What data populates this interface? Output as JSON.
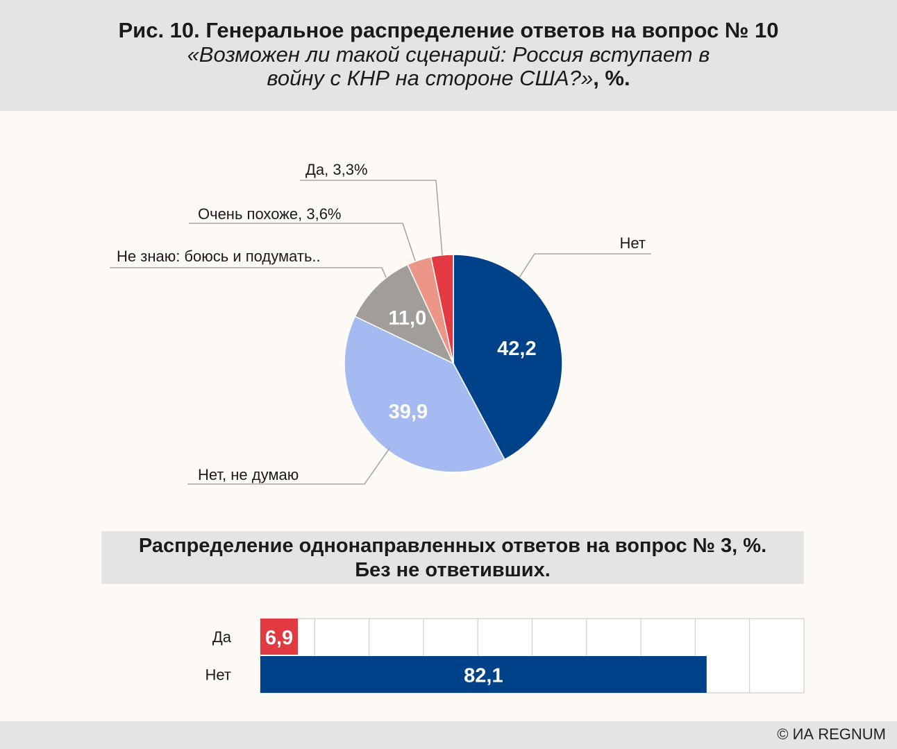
{
  "header": {
    "title": "Рис. 10. Генеральное распределение ответов на вопрос № 10",
    "subtitle_question": "«Возможен ли такой сценарий: Россия вступает в войну с КНР на стороне США?»",
    "subtitle_unit": ", %."
  },
  "chart_data": [
    {
      "type": "pie",
      "start": "12 o'clock, clockwise",
      "slices": [
        {
          "label": "Нет",
          "value": 42.2,
          "value_label": "42,2",
          "color": "#00428a",
          "value_color": "#ffffff"
        },
        {
          "label": "Нет, не думаю",
          "value": 39.9,
          "value_label": "39,9",
          "color": "#a4baf0",
          "value_color": "#ffffff"
        },
        {
          "label": "Не знаю: боюсь и подумать..",
          "value": 11.0,
          "value_label": "11,0",
          "color": "#a19e99",
          "value_color": "#ffffff"
        },
        {
          "label": "Очень похоже, 3,6%",
          "value": 3.6,
          "color": "#eb9687"
        },
        {
          "label": "Да, 3,3%",
          "value": 3.3,
          "color": "#e13b41"
        }
      ]
    },
    {
      "type": "bar",
      "orientation": "horizontal",
      "title": "Распределение однонаправленных ответов на вопрос № 3, %.",
      "subtitle": "Без не ответивших.",
      "categories": [
        "Да",
        "Нет"
      ],
      "values": [
        6.9,
        82.1
      ],
      "value_labels": [
        "6,9",
        "82,1"
      ],
      "colors": [
        "#e13b41",
        "#00428a"
      ],
      "xlim": [
        0,
        100
      ],
      "grid_step": 10,
      "grid": true
    }
  ],
  "footer": {
    "copyright": "© ИА REGNUM"
  }
}
